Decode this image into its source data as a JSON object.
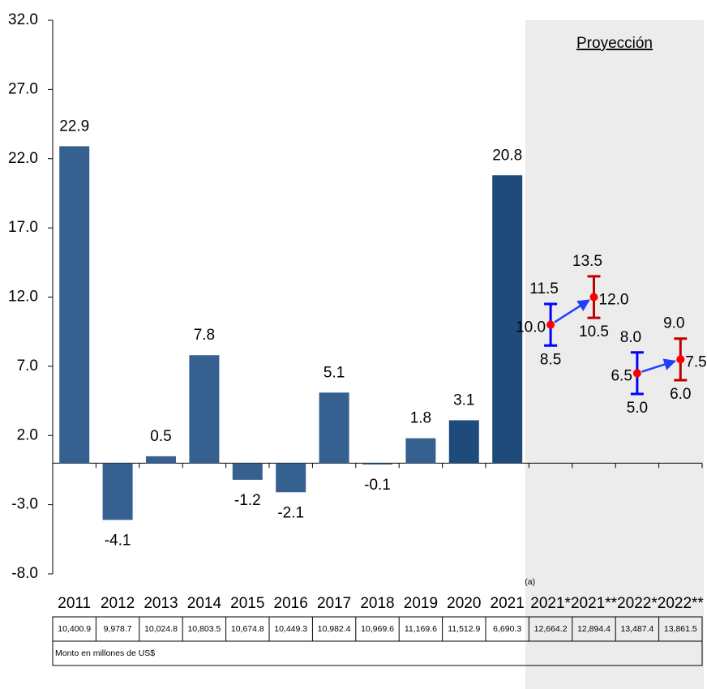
{
  "chart_data": {
    "type": "bar",
    "categories": [
      "2011",
      "2012",
      "2013",
      "2014",
      "2015",
      "2016",
      "2017",
      "2018",
      "2019",
      "2020",
      "2021"
    ],
    "category_note": "(a)",
    "values": [
      22.9,
      -4.1,
      0.5,
      7.8,
      -1.2,
      -2.1,
      5.1,
      -0.1,
      1.8,
      3.1,
      20.8
    ],
    "colors": [
      "#35608f",
      "#35608f",
      "#35608f",
      "#35608f",
      "#35608f",
      "#35608f",
      "#35608f",
      "#35608f",
      "#35608f",
      "#1f4b7a",
      "#1f4b7a"
    ],
    "ylim": [
      -8,
      32
    ],
    "yticks": [
      {
        "value": -8,
        "label": "-8.0"
      },
      {
        "value": -3,
        "label": "-3.0"
      },
      {
        "value": 2,
        "label": "2.0"
      },
      {
        "value": 7,
        "label": "7.0"
      },
      {
        "value": 12,
        "label": "12.0"
      },
      {
        "value": 17,
        "label": "17.0"
      },
      {
        "value": 22,
        "label": "22.0"
      },
      {
        "value": 27,
        "label": "27.0"
      },
      {
        "value": 32,
        "label": "32.0"
      }
    ],
    "projection": {
      "title": "Proyección",
      "categories": [
        "2021*",
        "2021**",
        "2022*",
        "2022**"
      ],
      "values": [
        10,
        12,
        6.5,
        7.5
      ],
      "value_labels": [
        "10.0",
        "12.0",
        "6.5",
        "7.5"
      ],
      "low": [
        8.5,
        10.5,
        5,
        6
      ],
      "low_labels": [
        "8.5",
        "10.5",
        "5.0",
        "6.0"
      ],
      "high": [
        11.5,
        13.5,
        8,
        9
      ],
      "high_labels": [
        "11.5",
        "13.5",
        "8.0",
        "9.0"
      ],
      "colors": [
        "#0000ff",
        "#c00000",
        "#0000ff",
        "#c00000"
      ],
      "point_color": "#ff0000"
    },
    "table": {
      "values": [
        "10,400.9",
        "9,978.7",
        "10,024.8",
        "10,803.5",
        "10,674.8",
        "10,449.3",
        "10,982.4",
        "10,969.6",
        "11,169.6",
        "11,512.9",
        "6,690.3",
        "12,664.2",
        "12,894.4",
        "13,487.4",
        "13,861.5"
      ],
      "note": "Monto en millones de US$"
    }
  }
}
